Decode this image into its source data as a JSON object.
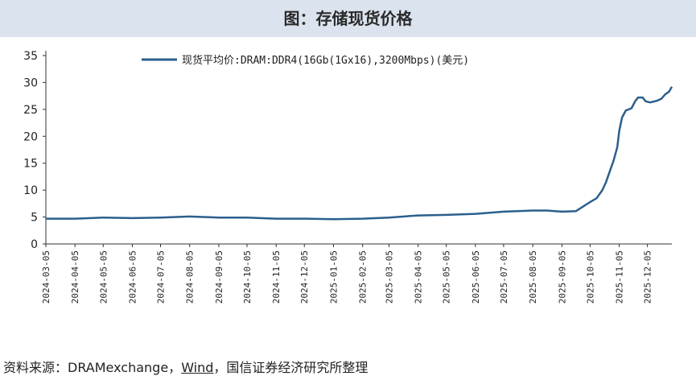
{
  "title": "图：存储现货价格",
  "source": {
    "prefix": "资料来源：DRAMexchange，",
    "wind": "Wind",
    "suffix": "，国信证券经济研究所整理"
  },
  "colors": {
    "line": "#2b5f8c",
    "title_bg": "#dbe3ee"
  },
  "chart_data": {
    "type": "line",
    "title": "图：存储现货价格",
    "legend_position": "top-center",
    "grid": false,
    "ylim": [
      0,
      35
    ],
    "yticks": [
      0,
      5,
      10,
      15,
      20,
      25,
      30,
      35
    ],
    "xlim": [
      "2024-03-05",
      "2025-12-31"
    ],
    "xticks": [
      "2024-03-05",
      "2024-04-05",
      "2024-05-05",
      "2024-06-05",
      "2024-07-05",
      "2024-08-05",
      "2024-09-05",
      "2024-10-05",
      "2024-11-05",
      "2024-12-05",
      "2025-01-05",
      "2025-02-05",
      "2025-03-05",
      "2025-04-05",
      "2025-05-05",
      "2025-06-05",
      "2025-07-05",
      "2025-08-05",
      "2025-09-05",
      "2025-10-05",
      "2025-11-05",
      "2025-12-05"
    ],
    "series": [
      {
        "name": "现货平均价:DRAM:DDR4(16Gb(1Gx16),3200Mbps)(美元)",
        "points": [
          [
            "2024-03-05",
            4.7
          ],
          [
            "2024-04-05",
            4.7
          ],
          [
            "2024-05-05",
            4.9
          ],
          [
            "2024-06-05",
            4.8
          ],
          [
            "2024-07-05",
            4.9
          ],
          [
            "2024-08-05",
            5.1
          ],
          [
            "2024-09-05",
            4.9
          ],
          [
            "2024-10-05",
            4.9
          ],
          [
            "2024-11-05",
            4.7
          ],
          [
            "2024-12-05",
            4.7
          ],
          [
            "2025-01-05",
            4.6
          ],
          [
            "2025-02-05",
            4.7
          ],
          [
            "2025-03-05",
            4.9
          ],
          [
            "2025-04-05",
            5.3
          ],
          [
            "2025-05-05",
            5.4
          ],
          [
            "2025-06-05",
            5.6
          ],
          [
            "2025-07-05",
            6.0
          ],
          [
            "2025-07-20",
            6.1
          ],
          [
            "2025-08-05",
            6.2
          ],
          [
            "2025-08-20",
            6.2
          ],
          [
            "2025-09-05",
            6.0
          ],
          [
            "2025-09-20",
            6.1
          ],
          [
            "2025-09-28",
            7.0
          ],
          [
            "2025-10-05",
            7.8
          ],
          [
            "2025-10-12",
            8.5
          ],
          [
            "2025-10-18",
            10.0
          ],
          [
            "2025-10-22",
            11.5
          ],
          [
            "2025-10-26",
            13.5
          ],
          [
            "2025-10-30",
            15.5
          ],
          [
            "2025-11-03",
            18.0
          ],
          [
            "2025-11-05",
            21.0
          ],
          [
            "2025-11-08",
            23.5
          ],
          [
            "2025-11-12",
            24.8
          ],
          [
            "2025-11-18",
            25.2
          ],
          [
            "2025-11-22",
            26.5
          ],
          [
            "2025-11-25",
            27.2
          ],
          [
            "2025-11-30",
            27.2
          ],
          [
            "2025-12-03",
            26.5
          ],
          [
            "2025-12-08",
            26.3
          ],
          [
            "2025-12-15",
            26.6
          ],
          [
            "2025-12-20",
            27.0
          ],
          [
            "2025-12-24",
            27.8
          ],
          [
            "2025-12-28",
            28.3
          ],
          [
            "2025-12-31",
            29.2
          ]
        ]
      }
    ]
  }
}
